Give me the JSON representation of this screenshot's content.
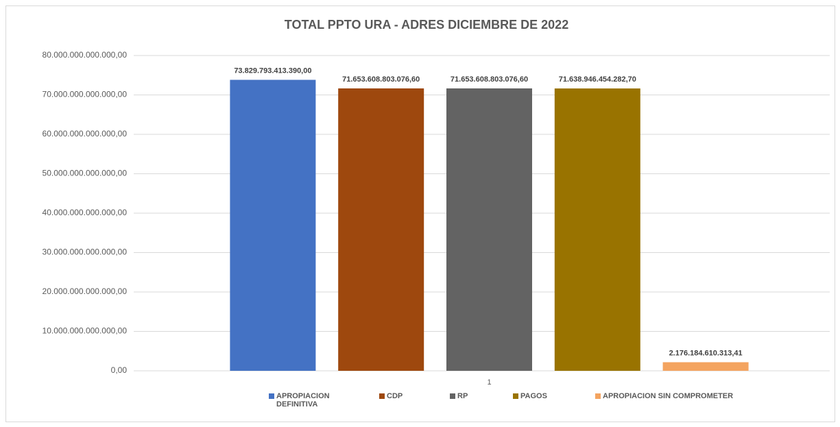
{
  "chart_data": {
    "type": "bar",
    "title": "TOTAL PPTO URA - ADRES DICIEMBRE DE 2022",
    "categories": [
      "1"
    ],
    "series": [
      {
        "name": "APROPIACION DEFINITIVA",
        "color": "#4472c4",
        "values": [
          73829793413390.0
        ],
        "value_labels": [
          "73.829.793.413.390,00"
        ]
      },
      {
        "name": "CDP",
        "color": "#9e480e",
        "values": [
          71653608803076.6
        ],
        "value_labels": [
          "71.653.608.803.076,60"
        ]
      },
      {
        "name": "RP",
        "color": "#636363",
        "values": [
          71653608803076.6
        ],
        "value_labels": [
          "71.653.608.803.076,60"
        ]
      },
      {
        "name": "PAGOS",
        "color": "#997300",
        "values": [
          71638946454282.7
        ],
        "value_labels": [
          "71.638.946.454.282,70"
        ]
      },
      {
        "name": "APROPIACION SIN COMPROMETER",
        "color": "#f4a460",
        "values": [
          2176184610313.41
        ],
        "value_labels": [
          "2.176.184.610.313,41"
        ]
      }
    ],
    "ylim": [
      0,
      80000000000000
    ],
    "yticks": [
      {
        "value": 0,
        "label": "0,00"
      },
      {
        "value": 10000000000000,
        "label": "10.000.000.000.000,00"
      },
      {
        "value": 20000000000000,
        "label": "20.000.000.000.000,00"
      },
      {
        "value": 30000000000000,
        "label": "30.000.000.000.000,00"
      },
      {
        "value": 40000000000000,
        "label": "40.000.000.000.000,00"
      },
      {
        "value": 50000000000000,
        "label": "50.000.000.000.000,00"
      },
      {
        "value": 60000000000000,
        "label": "60.000.000.000.000,00"
      },
      {
        "value": 70000000000000,
        "label": "70.000.000.000.000,00"
      },
      {
        "value": 80000000000000,
        "label": "80.000.000.000.000,00"
      }
    ],
    "grid": true,
    "legend": "bottom"
  }
}
